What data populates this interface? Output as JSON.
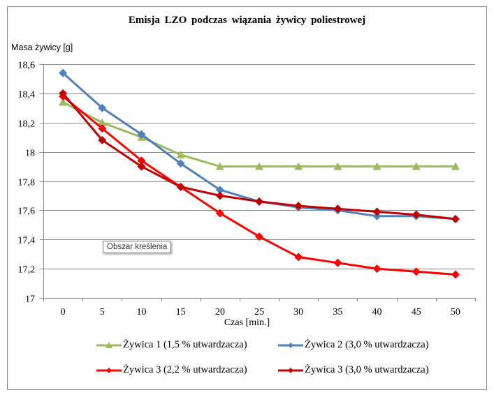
{
  "chart_data": {
    "type": "line",
    "title": "Emisja  LZO  podczas  wiązania  żywicy  poliestrowej",
    "xlabel": "Czas [min.]",
    "ylabel": "Masa żywicy [g]",
    "x": [
      0,
      5,
      10,
      15,
      20,
      25,
      30,
      35,
      40,
      45,
      50
    ],
    "x_tick_labels": [
      "0",
      "5",
      "10",
      "15",
      "20",
      "25",
      "30",
      "35",
      "40",
      "45",
      "50"
    ],
    "ylim": [
      17,
      18.6
    ],
    "y_ticks": [
      17,
      17.2,
      17.4,
      17.6,
      17.8,
      18,
      18.2,
      18.4,
      18.6
    ],
    "y_tick_labels": [
      "17",
      "17,2",
      "17,4",
      "17,6",
      "17,8",
      "18",
      "18,2",
      "18,4",
      "18,6"
    ],
    "grid": true,
    "legend_position": "bottom",
    "series": [
      {
        "name": "Żywica 1 (1,5 % utwardzacza)",
        "color": "#9BBB59",
        "marker": "triangle",
        "values": [
          18.34,
          18.2,
          18.1,
          17.98,
          17.9,
          17.9,
          17.9,
          17.9,
          17.9,
          17.9,
          17.9
        ]
      },
      {
        "name": "Żywica 2 (3,0 % utwardzacza)",
        "color": "#4F81BD",
        "marker": "diamond",
        "values": [
          18.54,
          18.3,
          18.12,
          17.92,
          17.74,
          17.66,
          17.62,
          17.6,
          17.56,
          17.56,
          17.54
        ]
      },
      {
        "name": "Żywica 3 (2,2 % utwardzacza)",
        "color": "#FF0000",
        "marker": "diamond",
        "values": [
          18.38,
          18.16,
          17.94,
          17.76,
          17.58,
          17.42,
          17.28,
          17.24,
          17.2,
          17.18,
          17.16
        ]
      },
      {
        "name": "Żywica 3 (3,0 % utwardzacza)",
        "color": "#C00000",
        "marker": "diamond",
        "values": [
          18.4,
          18.08,
          17.9,
          17.76,
          17.7,
          17.66,
          17.63,
          17.61,
          17.59,
          17.57,
          17.54
        ]
      }
    ]
  },
  "tooltip": {
    "text": "Obszar kreślenia"
  },
  "styling": {
    "gridline_color": "#868686",
    "axis_color": "#868686"
  }
}
